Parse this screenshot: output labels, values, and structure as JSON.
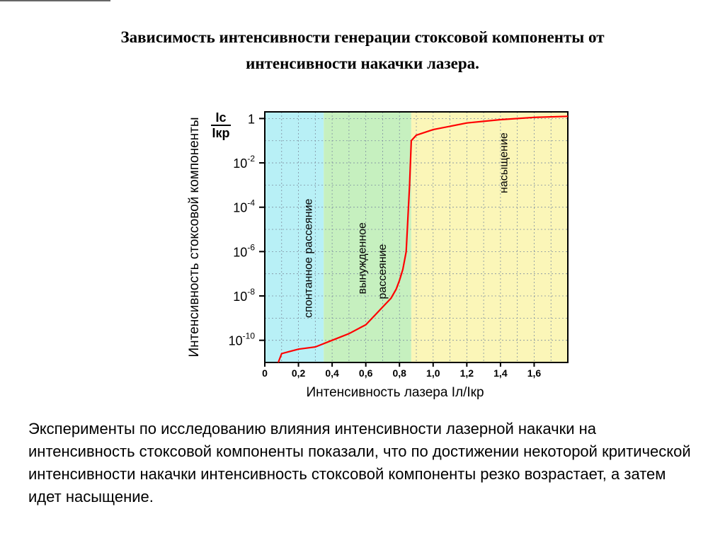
{
  "title_line1": "Зависимость интенсивности генерации стоксовой компоненты от",
  "title_line2": "интенсивности накачки лазера.",
  "caption": "Эксперименты по исследованию влияния интенсивности лазерной накачки на интенсивность стоксовой компоненты показали, что по достижении некоторой критической интенсивности накачки интенсивность стоксовой компоненты резко возрастает, а затем идет насыщение.",
  "chart_data": {
    "type": "line",
    "title": "",
    "xlabel": "Интенсивность лазера Iл/Iкр",
    "ylabel": "Интенсивность стоксовой компоненты",
    "y_axis_symbol_num": "Iс",
    "y_axis_symbol_den": "Iкр",
    "y_scale": "log",
    "xlim": [
      0,
      1.8
    ],
    "ylim_log10": [
      -11,
      0.3
    ],
    "x_ticks": [
      "0",
      "0,2",
      "0,4",
      "0,6",
      "0,8",
      "1,0",
      "1,2",
      "1,4",
      "1,6"
    ],
    "x_tick_values": [
      0,
      0.2,
      0.4,
      0.6,
      0.8,
      1.0,
      1.2,
      1.4,
      1.6
    ],
    "y_ticks": [
      {
        "label": "1",
        "exp": 0
      },
      {
        "base": "10",
        "sup": "-2",
        "exp": -2
      },
      {
        "base": "10",
        "sup": "-4",
        "exp": -4
      },
      {
        "base": "10",
        "sup": "-6",
        "exp": -6
      },
      {
        "base": "10",
        "sup": "-8",
        "exp": -8
      },
      {
        "base": "10",
        "sup": "-10",
        "exp": -10
      }
    ],
    "grid": true,
    "regions": [
      {
        "label": "спонтанное рассеяние",
        "x_from": 0,
        "x_to": 0.35,
        "color": "#b8f0f6"
      },
      {
        "label": "вынужденное рассеяние",
        "x_from": 0.35,
        "x_to": 0.87,
        "color": "#c6f0bf"
      },
      {
        "label": "насыщение",
        "x_from": 0.87,
        "x_to": 1.8,
        "color": "#fbf6b8"
      }
    ],
    "series": [
      {
        "color": "#ff0000",
        "points": [
          [
            0.08,
            -11
          ],
          [
            0.1,
            -10.6
          ],
          [
            0.15,
            -10.5
          ],
          [
            0.2,
            -10.4
          ],
          [
            0.3,
            -10.3
          ],
          [
            0.4,
            -10.0
          ],
          [
            0.5,
            -9.7
          ],
          [
            0.6,
            -9.3
          ],
          [
            0.65,
            -8.9
          ],
          [
            0.7,
            -8.5
          ],
          [
            0.75,
            -8.1
          ],
          [
            0.78,
            -7.7
          ],
          [
            0.8,
            -7.3
          ],
          [
            0.82,
            -6.8
          ],
          [
            0.84,
            -6.0
          ],
          [
            0.85,
            -4.5
          ],
          [
            0.86,
            -3.0
          ],
          [
            0.87,
            -1.0
          ],
          [
            0.9,
            -0.75
          ],
          [
            1.0,
            -0.5
          ],
          [
            1.2,
            -0.2
          ],
          [
            1.4,
            -0.05
          ],
          [
            1.6,
            0.05
          ],
          [
            1.8,
            0.1
          ]
        ]
      }
    ]
  }
}
